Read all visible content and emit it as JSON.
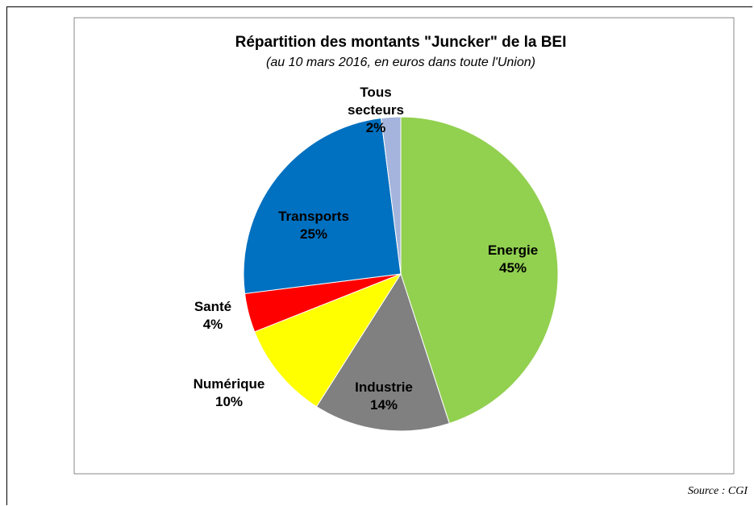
{
  "chart_data": {
    "type": "pie",
    "title": "Répartition des montants \"Juncker\" de la BEI",
    "subtitle": "(au 10 mars 2016, en euros dans toute l'Union)",
    "categories": [
      "Energie",
      "Industrie",
      "Numérique",
      "Santé",
      "Transports",
      "Tous secteurs"
    ],
    "values": [
      45,
      14,
      10,
      4,
      25,
      2
    ],
    "value_labels": [
      "45%",
      "14%",
      "10%",
      "4%",
      "25%",
      "2%"
    ],
    "colors": [
      "#92d050",
      "#808080",
      "#ffff00",
      "#ff0000",
      "#0070c0",
      "#a4b4dc"
    ],
    "source": "Source : CGI"
  }
}
